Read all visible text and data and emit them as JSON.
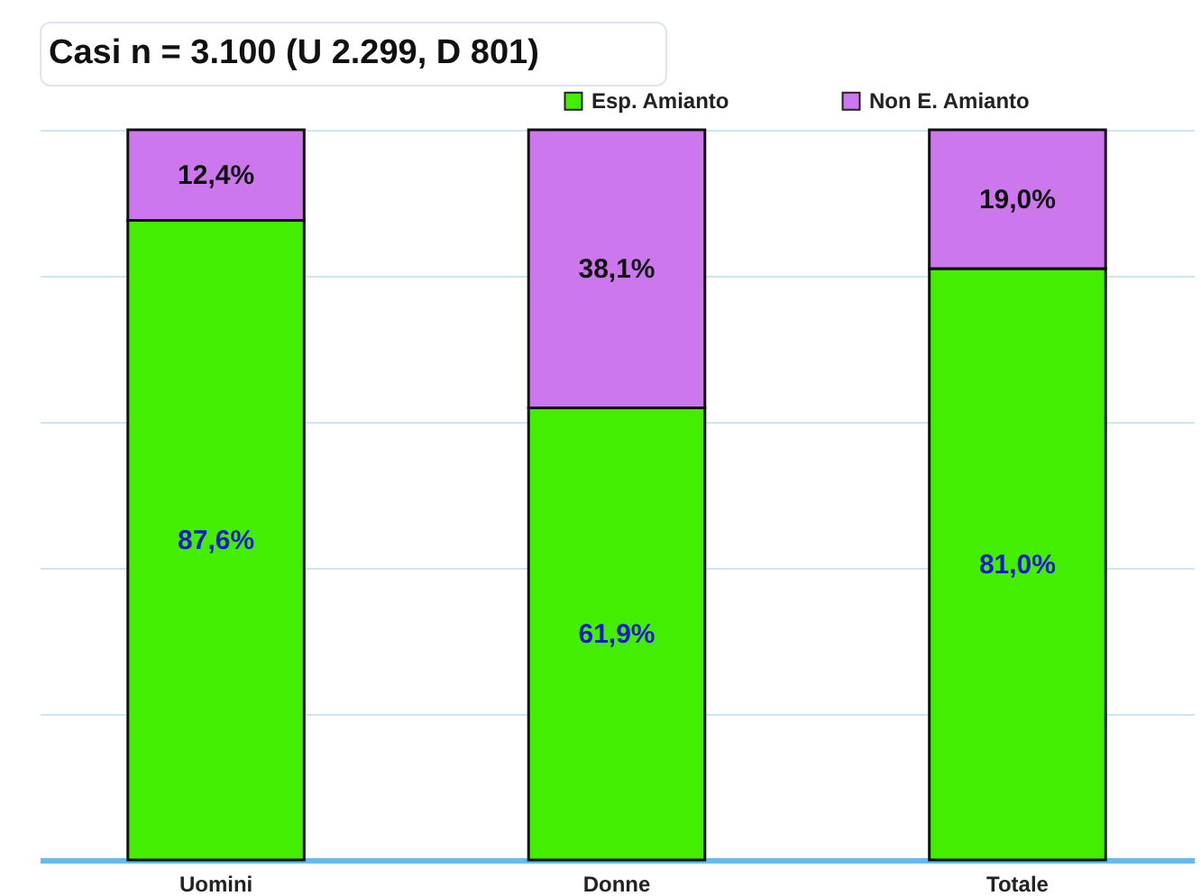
{
  "chart_data": {
    "type": "bar",
    "title": "Casi n = 3.100  (U 2.299, D 801)",
    "categories": [
      "Uomini",
      "Donne",
      "Totale"
    ],
    "stacked": true,
    "ylim": [
      0,
      100
    ],
    "yticks": [
      {
        "value": 0,
        "label": null
      },
      {
        "value": 20,
        "label": null
      },
      {
        "value": 40,
        "label": null
      },
      {
        "value": 60,
        "label": null
      },
      {
        "value": 80,
        "label": null
      },
      {
        "value": 100,
        "label": null
      }
    ],
    "grid": "y",
    "legend": "top right",
    "series": [
      {
        "name": "Esp. Amianto",
        "color": "#44ee00",
        "values": [
          87.6,
          61.9,
          81.0
        ],
        "value_labels": [
          "87,6%",
          "61,9%",
          "81,0%"
        ]
      },
      {
        "name": "Non E. Amianto",
        "color": "#cc77ee",
        "values": [
          12.4,
          38.1,
          19.0
        ],
        "value_labels": [
          "12,4%",
          "38,1%",
          "19,0%"
        ]
      }
    ]
  }
}
